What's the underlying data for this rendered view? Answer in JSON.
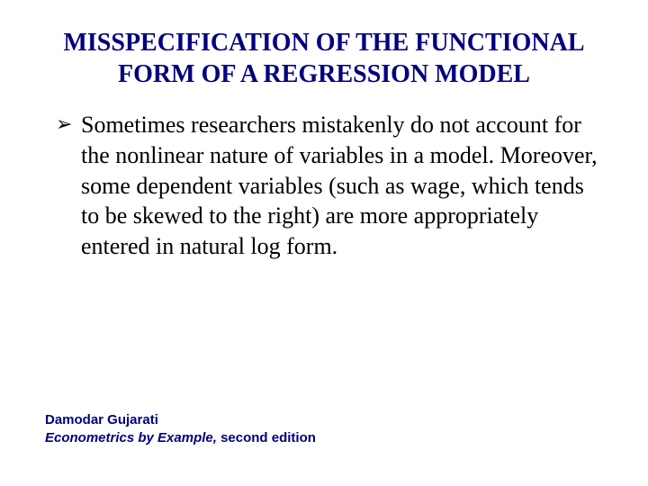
{
  "title": "MISSPECIFICATION OF THE FUNCTIONAL FORM OF A REGRESSION MODEL",
  "bullet_marker": "➢",
  "bullets": [
    "Sometimes researchers mistakenly do not account for the nonlinear nature of variables in a model.  Moreover, some dependent variables (such as wage, which tends to be skewed to the right) are more appropriately entered in natural log form."
  ],
  "footer": {
    "author": "Damodar Gujarati",
    "book": "Econometrics by Example,",
    "edition": " second edition"
  },
  "colors": {
    "title": "#000080",
    "body": "#000000",
    "footer": "#000080",
    "background": "#ffffff"
  }
}
